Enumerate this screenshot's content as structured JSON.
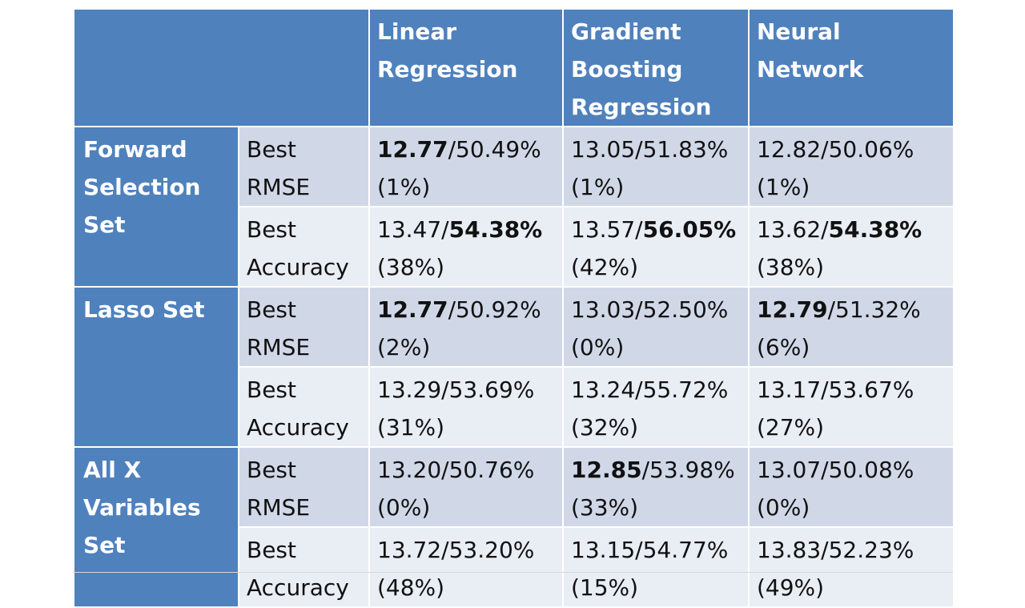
{
  "header": {
    "columns": [
      "Linear Regression",
      "Gradient Boosting Regression",
      "Neural Network"
    ]
  },
  "groups": [
    {
      "set": "Forward Selection Set",
      "rows": [
        {
          "metric": "Best RMSE",
          "cells": [
            {
              "a": "12.77",
              "b": "50.49%",
              "p": "(1%)",
              "bold": "a"
            },
            {
              "a": "13.05",
              "b": "51.83%",
              "p": "(1%)",
              "bold": ""
            },
            {
              "a": "12.82",
              "b": "50.06%",
              "p": "(1%)",
              "bold": ""
            }
          ]
        },
        {
          "metric": "Best Accuracy",
          "cells": [
            {
              "a": "13.47",
              "b": "54.38%",
              "p": "(38%)",
              "bold": "b"
            },
            {
              "a": "13.57",
              "b": "56.05%",
              "p": "(42%)",
              "bold": "b"
            },
            {
              "a": "13.62",
              "b": "54.38%",
              "p": "(38%)",
              "bold": "b"
            }
          ]
        }
      ]
    },
    {
      "set": "Lasso Set",
      "rows": [
        {
          "metric": "Best RMSE",
          "cells": [
            {
              "a": "12.77",
              "b": "50.92%",
              "p": "(2%)",
              "bold": "a"
            },
            {
              "a": "13.03",
              "b": "52.50%",
              "p": "(0%)",
              "bold": ""
            },
            {
              "a": "12.79",
              "b": "51.32%",
              "p": "(6%)",
              "bold": "a"
            }
          ]
        },
        {
          "metric": "Best Accuracy",
          "cells": [
            {
              "a": "13.29",
              "b": "53.69%",
              "p": "(31%)",
              "bold": ""
            },
            {
              "a": "13.24",
              "b": "55.72%",
              "p": "(32%)",
              "bold": ""
            },
            {
              "a": "13.17",
              "b": "53.67%",
              "p": "(27%)",
              "bold": ""
            }
          ]
        }
      ]
    },
    {
      "set": "All X Variables Set",
      "rows": [
        {
          "metric": "Best RMSE",
          "cells": [
            {
              "a": "13.20",
              "b": "50.76%",
              "p": "(0%)",
              "bold": ""
            },
            {
              "a": "12.85",
              "b": "53.98%",
              "p": "(33%)",
              "bold": "a"
            },
            {
              "a": "13.07",
              "b": "50.08%",
              "p": "(0%)",
              "bold": ""
            }
          ]
        },
        {
          "metric": "Best Accuracy",
          "cells": [
            {
              "a": "13.72",
              "b": "53.20%",
              "p": "(48%)",
              "bold": ""
            },
            {
              "a": "13.15",
              "b": "54.77%",
              "p": "(15%)",
              "bold": ""
            },
            {
              "a": "13.83",
              "b": "52.23%",
              "p": "(49%)",
              "bold": ""
            }
          ]
        }
      ]
    }
  ]
}
